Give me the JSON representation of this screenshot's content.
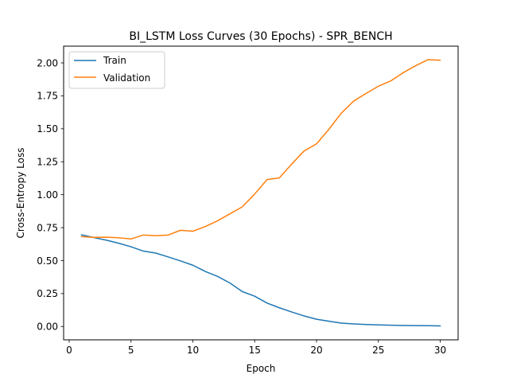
{
  "chart_data": {
    "type": "line",
    "title": "BI_LSTM Loss Curves (30 Epochs) - SPR_BENCH",
    "xlabel": "Epoch",
    "ylabel": "Cross-Entropy Loss",
    "xlim": [
      -0.45,
      31.45
    ],
    "ylim": [
      -0.101,
      2.127
    ],
    "xticks": [
      0,
      5,
      10,
      15,
      20,
      25,
      30
    ],
    "xtick_labels": [
      "0",
      "5",
      "10",
      "15",
      "20",
      "25",
      "30"
    ],
    "yticks": [
      0.0,
      0.25,
      0.5,
      0.75,
      1.0,
      1.25,
      1.5,
      1.75,
      2.0
    ],
    "ytick_labels": [
      "0.00",
      "0.25",
      "0.50",
      "0.75",
      "1.00",
      "1.25",
      "1.50",
      "1.75",
      "2.00"
    ],
    "grid": false,
    "legend_position": "top-left",
    "x": [
      1,
      2,
      3,
      4,
      5,
      6,
      7,
      8,
      9,
      10,
      11,
      12,
      13,
      14,
      15,
      16,
      17,
      18,
      19,
      20,
      21,
      22,
      23,
      24,
      25,
      26,
      27,
      28,
      29,
      30
    ],
    "series": [
      {
        "name": "Train",
        "color": "#1f77b4",
        "values": [
          0.695,
          0.675,
          0.655,
          0.632,
          0.605,
          0.572,
          0.557,
          0.528,
          0.498,
          0.465,
          0.418,
          0.38,
          0.33,
          0.265,
          0.23,
          0.178,
          0.142,
          0.11,
          0.08,
          0.055,
          0.04,
          0.026,
          0.02,
          0.015,
          0.012,
          0.01,
          0.008,
          0.007,
          0.006,
          0.005
        ]
      },
      {
        "name": "Validation",
        "color": "#ff7f0e",
        "values": [
          0.682,
          0.676,
          0.678,
          0.673,
          0.664,
          0.694,
          0.689,
          0.694,
          0.73,
          0.723,
          0.758,
          0.802,
          0.855,
          0.908,
          1.005,
          1.115,
          1.128,
          1.233,
          1.332,
          1.386,
          1.496,
          1.618,
          1.71,
          1.768,
          1.823,
          1.863,
          1.925,
          1.978,
          2.024,
          2.02
        ]
      }
    ]
  }
}
